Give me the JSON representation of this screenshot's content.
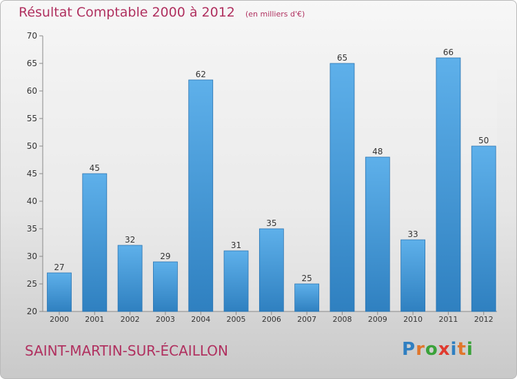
{
  "title": "Résultat Comptable 2000 à 2012",
  "unit_note": "(en milliers d'€)",
  "commune": "SAINT-MARTIN-SUR-ÉCAILLON",
  "logo": {
    "text": "Proxiti",
    "letter_colors": [
      "#2f7fc1",
      "#e0762b",
      "#3aa23a",
      "#e03a2f",
      "#2f7fc1",
      "#e0762b",
      "#3aa23a"
    ]
  },
  "colors": {
    "bar_top": "#5eb0ea",
    "bar_bottom": "#2f80c0",
    "bar_edge": "#2a74b2",
    "title": "#b0305f",
    "axis_text": "#333333",
    "grid": "#dddddd"
  },
  "chart_data": {
    "type": "bar",
    "categories": [
      "2000",
      "2001",
      "2002",
      "2003",
      "2004",
      "2005",
      "2006",
      "2007",
      "2008",
      "2009",
      "2010",
      "2011",
      "2012"
    ],
    "values": [
      27,
      45,
      32,
      29,
      62,
      31,
      35,
      25,
      65,
      48,
      33,
      66,
      50
    ],
    "ylim": [
      20,
      70
    ],
    "yticks": [
      20,
      25,
      30,
      35,
      40,
      45,
      50,
      55,
      60,
      65,
      70
    ],
    "grid": false,
    "data_labels": true
  }
}
